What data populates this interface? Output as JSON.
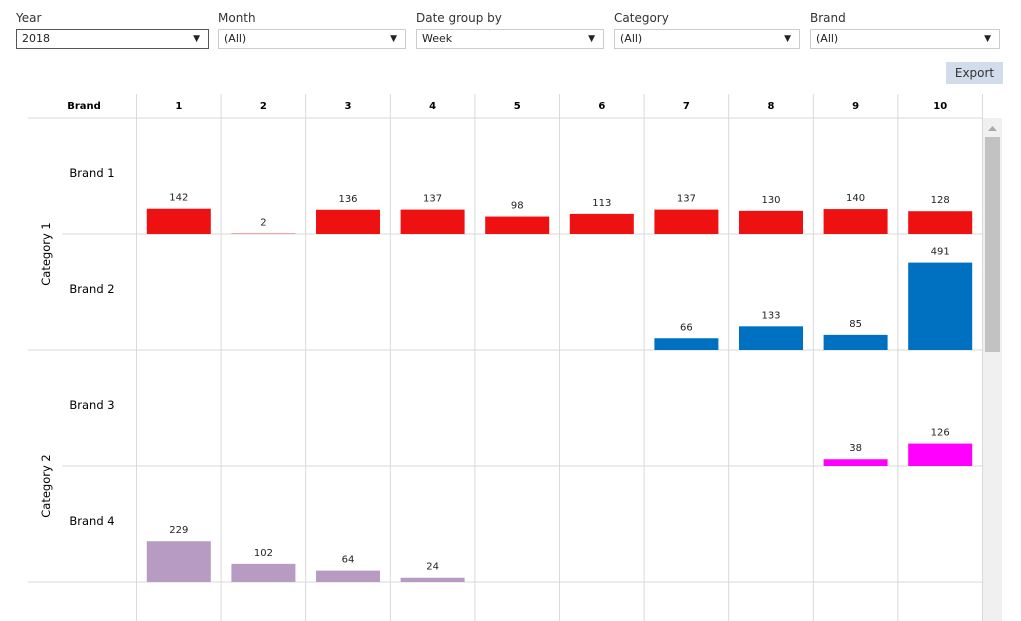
{
  "filters": [
    {
      "label": "Year",
      "value": "2018"
    },
    {
      "label": "Month",
      "value": "(All)"
    },
    {
      "label": "Date group by",
      "value": "Week"
    },
    {
      "label": "Category",
      "value": "(All)"
    },
    {
      "label": "Brand",
      "value": "(All)"
    }
  ],
  "export_label": "Export",
  "chart_data": {
    "type": "bar",
    "layout": "small-multiples",
    "column_header": "Brand",
    "categories": [
      "1",
      "2",
      "3",
      "4",
      "5",
      "6",
      "7",
      "8",
      "9",
      "10"
    ],
    "groups": [
      {
        "name": "Category 1",
        "rows": [
          {
            "name": "Brand 1",
            "color": "#ee1111",
            "values": [
              142,
              2,
              136,
              137,
              98,
              113,
              137,
              130,
              140,
              128
            ]
          },
          {
            "name": "Brand 2",
            "color": "#0070c0",
            "values": [
              null,
              null,
              null,
              null,
              null,
              null,
              66,
              133,
              85,
              491
            ]
          }
        ]
      },
      {
        "name": "Category 2",
        "rows": [
          {
            "name": "Brand 3",
            "color": "#ff00ff",
            "values": [
              null,
              null,
              null,
              null,
              null,
              null,
              null,
              null,
              38,
              126
            ]
          },
          {
            "name": "Brand 4",
            "color": "#b79bc3",
            "values": [
              229,
              102,
              64,
              24,
              null,
              null,
              null,
              null,
              null,
              null
            ]
          }
        ]
      }
    ]
  }
}
